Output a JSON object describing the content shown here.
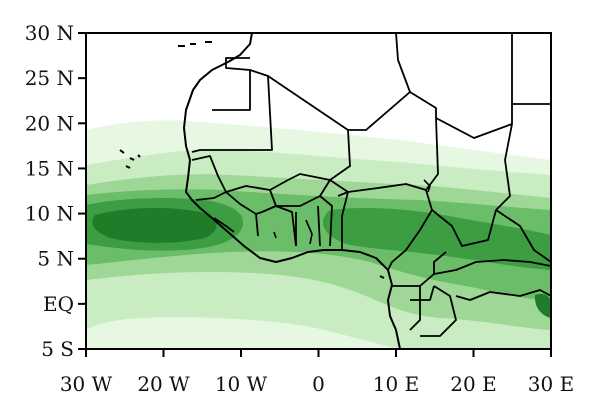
{
  "map": {
    "lon_range": [
      -30,
      30
    ],
    "lat_range": [
      -5,
      30
    ],
    "fill_colors": [
      "#e6f7e2",
      "#c9ecc2",
      "#9fd796",
      "#6cbd69",
      "#3d9d42",
      "#1f7d2a"
    ],
    "y_ticks": [
      {
        "label": "30 N",
        "lat": 30
      },
      {
        "label": "25 N",
        "lat": 25
      },
      {
        "label": "20 N",
        "lat": 20
      },
      {
        "label": "15 N",
        "lat": 15
      },
      {
        "label": "10 N",
        "lat": 10
      },
      {
        "label": "5 N",
        "lat": 5
      },
      {
        "label": "EQ",
        "lat": 0
      },
      {
        "label": "5 S",
        "lat": -5
      }
    ],
    "x_ticks": [
      {
        "label": "30 W",
        "lon": -30
      },
      {
        "label": "20 W",
        "lon": -20
      },
      {
        "label": "10 W",
        "lon": -10
      },
      {
        "label": "0",
        "lon": 0
      },
      {
        "label": "10 E",
        "lon": 10
      },
      {
        "label": "20 E",
        "lon": 20
      },
      {
        "label": "30 E",
        "lon": 30
      }
    ]
  }
}
